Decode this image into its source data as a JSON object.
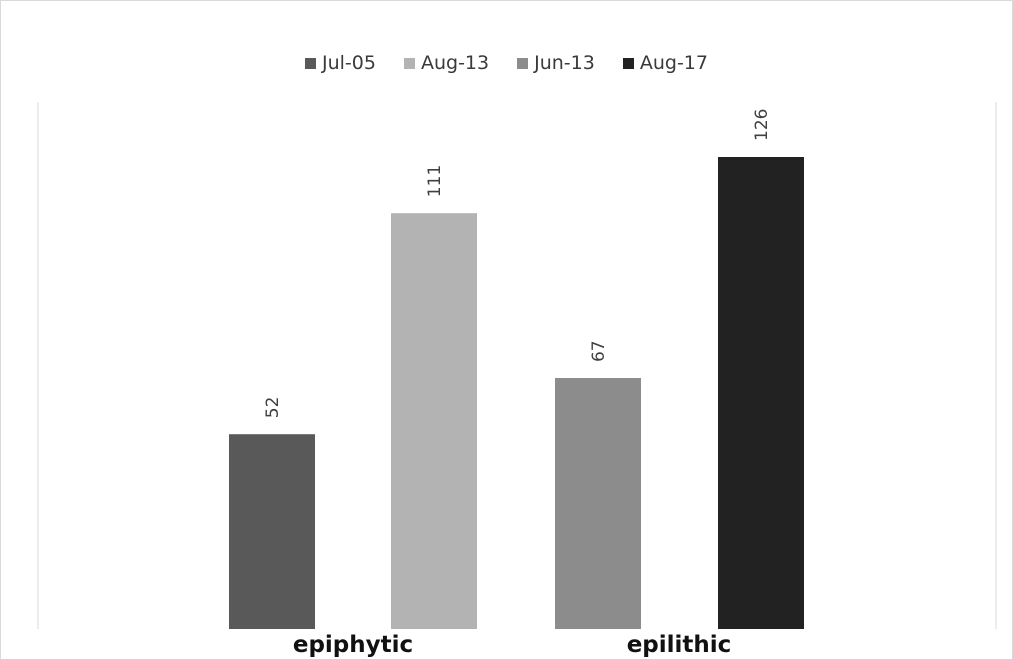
{
  "chart_data": {
    "type": "bar",
    "categories": [
      "epiphytic",
      "epilithic"
    ],
    "series": [
      {
        "name": "Jul-05",
        "color": "#595959",
        "values": [
          52,
          null
        ]
      },
      {
        "name": "Aug-13",
        "color": "#b3b3b3",
        "values": [
          111,
          null
        ]
      },
      {
        "name": "Jun-13",
        "color": "#8c8c8c",
        "values": [
          null,
          67
        ]
      },
      {
        "name": "Aug-17",
        "color": "#222222",
        "values": [
          null,
          126
        ]
      }
    ],
    "data_labels": true,
    "ylim": [
      0,
      126
    ],
    "grid": false,
    "legend_position": "top-center",
    "xlabel": "",
    "ylabel": "",
    "title": ""
  }
}
